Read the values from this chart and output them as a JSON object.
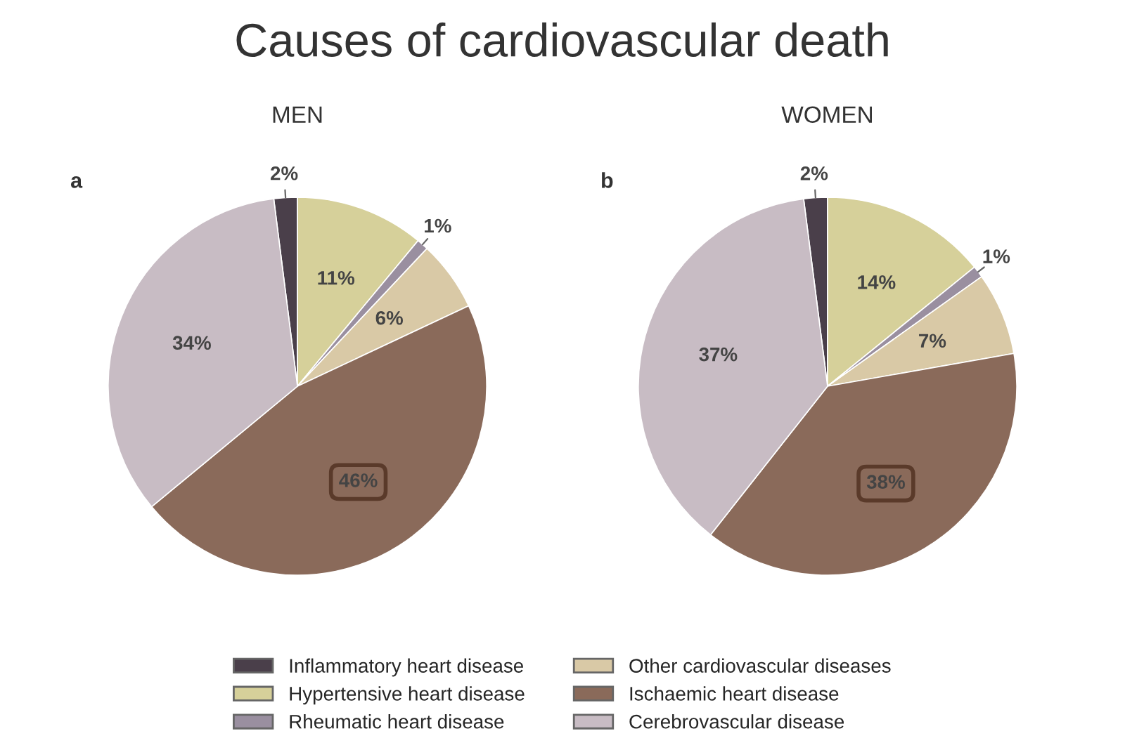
{
  "chart_data": [
    {
      "type": "pie",
      "title": "Causes of cardiovascular death",
      "subtitle": "MEN",
      "annotations": [
        "a"
      ],
      "categories": [
        "Inflammatory heart disease",
        "Hypertensive heart disease",
        "Rheumatic heart disease",
        "Other cardiovascular diseases",
        "Ischaemic heart disease",
        "Cerebrovascular disease"
      ],
      "values": [
        2,
        11,
        1,
        6,
        46,
        34
      ],
      "value_labels": [
        "2%",
        "11%",
        "1%",
        "6%",
        "46%",
        "34%"
      ],
      "colors": [
        "#4a3f4a",
        "#d6d09a",
        "#9a8fa0",
        "#d9c9a6",
        "#8a6a5a",
        "#c8bcc4"
      ],
      "legend": "bottom"
    },
    {
      "type": "pie",
      "subtitle": "WOMEN",
      "annotations": [
        "b"
      ],
      "categories": [
        null,
        null,
        null,
        null,
        null,
        null
      ],
      "values": [
        2,
        14,
        1,
        7,
        38,
        37
      ],
      "value_labels": [
        "2%",
        "14%",
        "1%",
        "7%",
        "38%",
        "37%"
      ],
      "colors": [
        "#4a3f4a",
        "#d6d09a",
        "#9a8fa0",
        "#d9c9a6",
        "#8a6a5a",
        "#c8bcc4"
      ]
    }
  ]
}
